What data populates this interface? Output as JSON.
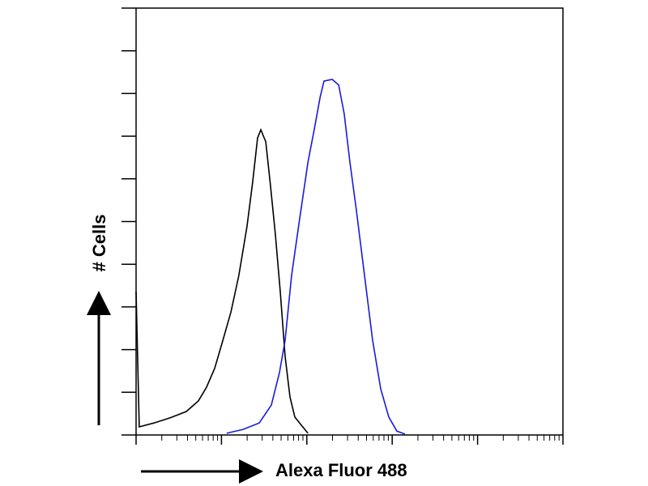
{
  "chart_data": {
    "type": "line",
    "x_label": "Alexa Fluor 488",
    "y_label": "# Cells",
    "xscale": "log",
    "xlim": [
      1,
      100000
    ],
    "xticks": [
      1,
      10,
      100,
      1000,
      10000,
      100000
    ],
    "ylim": [
      0,
      100
    ],
    "yticks": [
      0,
      10,
      20,
      30,
      40,
      50,
      60,
      70,
      80,
      90,
      100
    ],
    "series": [
      {
        "color": "#000000",
        "x": [
          1,
          1.09,
          1.62,
          2.5,
          3.88,
          5.38,
          6.69,
          8.32,
          10.4,
          12.9,
          16.0,
          19.9,
          23.2,
          26.5,
          28.9,
          33.0,
          37.6,
          42.8,
          48.8,
          55.7,
          63.5,
          72.4,
          86.2,
          103
        ],
        "values": [
          33.6,
          1.9,
          2.8,
          4.0,
          5.5,
          8.0,
          11.2,
          15.6,
          22.2,
          28.8,
          37.4,
          48.8,
          59.2,
          69.6,
          71.5,
          68.7,
          58.3,
          46.9,
          33.6,
          18.4,
          8.9,
          4.2,
          2.3,
          0.4
        ]
      },
      {
        "color": "#1a1adb",
        "x": [
          11.5,
          17.9,
          27.7,
          38.4,
          47.8,
          55.7,
          66.3,
          82.6,
          103,
          122,
          143,
          159,
          198,
          236,
          274,
          320,
          381,
          474,
          589,
          733,
          912,
          1135,
          1413
        ],
        "values": [
          0.4,
          1.3,
          2.8,
          7.0,
          14.6,
          22.2,
          37.4,
          50.7,
          63.9,
          71.5,
          79.1,
          82.9,
          83.3,
          82.0,
          75.3,
          63.9,
          52.6,
          37.4,
          22.2,
          10.8,
          4.2,
          0.9,
          0.2
        ]
      }
    ]
  }
}
